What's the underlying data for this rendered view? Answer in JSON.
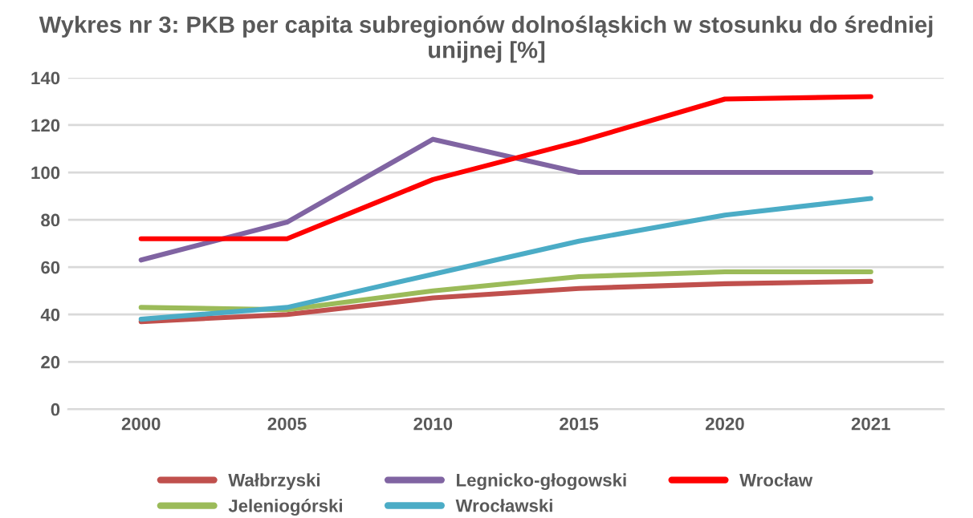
{
  "chart_data": {
    "type": "line",
    "title": "Wykres nr 3: PKB per capita subregionów dolnośląskich w stosunku do średniej unijnej [%]",
    "categories": [
      "2000",
      "2005",
      "2010",
      "2015",
      "2020",
      "2021"
    ],
    "series": [
      {
        "name": "Wałbrzyski",
        "color": "#c0504d",
        "values": [
          37,
          40,
          47,
          51,
          53,
          54
        ]
      },
      {
        "name": "Jeleniogórski",
        "color": "#9bbb59",
        "values": [
          43,
          42,
          50,
          56,
          58,
          58
        ]
      },
      {
        "name": "Legnicko-głogowski",
        "color": "#8064a2",
        "values": [
          63,
          79,
          114,
          100,
          100,
          100
        ]
      },
      {
        "name": "Wrocławski",
        "color": "#4bacc6",
        "values": [
          38,
          43,
          57,
          71,
          82,
          89
        ]
      },
      {
        "name": "Wrocław",
        "color": "#ff0000",
        "values": [
          72,
          72,
          97,
          113,
          131,
          132
        ]
      }
    ],
    "ylim": [
      0,
      140
    ],
    "yticks": [
      0,
      20,
      40,
      60,
      80,
      100,
      120,
      140
    ],
    "grid": "y",
    "legend": "bottom",
    "marker": "none",
    "line_style": "solid"
  }
}
